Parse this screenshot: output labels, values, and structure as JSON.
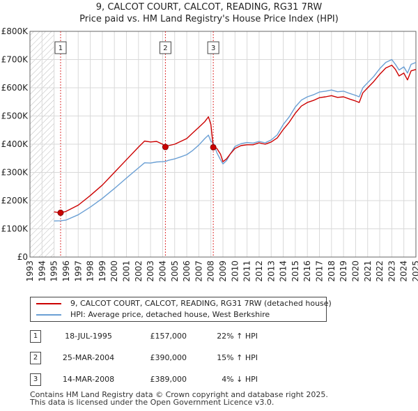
{
  "title_line1": "9, CALCOT COURT, CALCOT, READING, RG31 7RW",
  "title_line2": "Price paid vs. HM Land Registry's House Price Index (HPI)",
  "chart_data": {
    "type": "line",
    "title": "9, CALCOT COURT, CALCOT, READING, RG31 7RW — Price paid vs. HM Land Registry's House Price Index (HPI)",
    "xlabel": "",
    "ylabel": "",
    "xlim": [
      1993,
      2025
    ],
    "ylim": [
      0,
      800000
    ],
    "x_ticks": [
      1993,
      1994,
      1995,
      1996,
      1997,
      1998,
      1999,
      2000,
      2001,
      2002,
      2003,
      2004,
      2005,
      2006,
      2007,
      2008,
      2009,
      2010,
      2011,
      2012,
      2013,
      2014,
      2015,
      2016,
      2017,
      2018,
      2019,
      2020,
      2021,
      2022,
      2023,
      2024,
      2025
    ],
    "y_ticks": [
      0,
      100000,
      200000,
      300000,
      400000,
      500000,
      600000,
      700000,
      800000
    ],
    "y_tick_labels": [
      "£0",
      "£100K",
      "£200K",
      "£300K",
      "£400K",
      "£500K",
      "£600K",
      "£700K",
      "£800K"
    ],
    "grid": true,
    "hatched_region": [
      1993,
      1995
    ],
    "series": [
      {
        "name": "9, CALCOT COURT, CALCOT, READING, RG31 7RW (detached house)",
        "color": "#cc0000",
        "x": [
          1995.0,
          1995.54,
          1996.0,
          1997.0,
          1998.0,
          1999.0,
          2000.0,
          2001.0,
          2002.0,
          2002.5,
          2003.0,
          2003.5,
          2004.0,
          2004.23,
          2004.5,
          2005.0,
          2005.5,
          2006.0,
          2006.5,
          2007.0,
          2007.5,
          2007.8,
          2008.0,
          2008.2,
          2008.5,
          2008.8,
          2009.0,
          2009.3,
          2009.6,
          2010.0,
          2010.5,
          2011.0,
          2011.5,
          2012.0,
          2012.5,
          2013.0,
          2013.5,
          2014.0,
          2014.5,
          2015.0,
          2015.5,
          2016.0,
          2016.5,
          2017.0,
          2017.5,
          2018.0,
          2018.5,
          2019.0,
          2019.5,
          2020.0,
          2020.3,
          2020.6,
          2021.0,
          2021.5,
          2022.0,
          2022.5,
          2023.0,
          2023.3,
          2023.6,
          2024.0,
          2024.3,
          2024.6,
          2025.0
        ],
        "y": [
          160000,
          157000,
          162000,
          184000,
          218000,
          255000,
          300000,
          345000,
          390000,
          411000,
          408000,
          410000,
          400000,
          390000,
          395000,
          400000,
          410000,
          420000,
          440000,
          460000,
          480000,
          497000,
          470000,
          389000,
          385000,
          365000,
          338000,
          348000,
          365000,
          385000,
          395000,
          398000,
          398000,
          405000,
          400000,
          408000,
          422000,
          452000,
          478000,
          510000,
          535000,
          548000,
          555000,
          565000,
          568000,
          572000,
          566000,
          568000,
          560000,
          553000,
          548000,
          582000,
          600000,
          622000,
          648000,
          670000,
          680000,
          665000,
          642000,
          652000,
          628000,
          660000,
          665000
        ]
      },
      {
        "name": "HPI: Average price, detached house, West Berkshire",
        "color": "#6a9fd4",
        "x": [
          1995.0,
          1995.54,
          1996.0,
          1997.0,
          1998.0,
          1999.0,
          2000.0,
          2001.0,
          2002.0,
          2002.5,
          2003.0,
          2003.5,
          2004.0,
          2004.23,
          2004.5,
          2005.0,
          2005.5,
          2006.0,
          2006.5,
          2007.0,
          2007.5,
          2007.8,
          2008.0,
          2008.2,
          2008.5,
          2008.8,
          2009.0,
          2009.3,
          2009.6,
          2010.0,
          2010.5,
          2011.0,
          2011.5,
          2012.0,
          2012.5,
          2013.0,
          2013.5,
          2014.0,
          2014.5,
          2015.0,
          2015.5,
          2016.0,
          2016.5,
          2017.0,
          2017.5,
          2018.0,
          2018.5,
          2019.0,
          2019.5,
          2020.0,
          2020.3,
          2020.6,
          2021.0,
          2021.5,
          2022.0,
          2022.5,
          2023.0,
          2023.3,
          2023.6,
          2024.0,
          2024.3,
          2024.6,
          2025.0
        ],
        "y": [
          128000,
          128700,
          131000,
          150000,
          177000,
          208000,
          243000,
          280000,
          316000,
          334000,
          333000,
          337000,
          338000,
          339000,
          343000,
          348000,
          355000,
          363000,
          378000,
          397000,
          420000,
          432000,
          410000,
          405000,
          370000,
          345000,
          330000,
          342000,
          365000,
          392000,
          402000,
          406000,
          404000,
          410000,
          405000,
          415000,
          433000,
          470000,
          497000,
          532000,
          556000,
          568000,
          575000,
          585000,
          588000,
          592000,
          586000,
          588000,
          580000,
          573000,
          568000,
          600000,
          618000,
          640000,
          668000,
          690000,
          700000,
          683000,
          663000,
          674000,
          652000,
          683000,
          690000
        ]
      }
    ],
    "sales": [
      {
        "label": "1",
        "x": 1995.54,
        "y": 157000
      },
      {
        "label": "2",
        "x": 2004.23,
        "y": 390000
      },
      {
        "label": "3",
        "x": 2008.2,
        "y": 389000
      }
    ]
  },
  "legend": {
    "items": [
      {
        "label": "9, CALCOT COURT, CALCOT, READING, RG31 7RW (detached house)",
        "color": "#cc0000"
      },
      {
        "label": "HPI: Average price, detached house, West Berkshire",
        "color": "#6a9fd4"
      }
    ]
  },
  "sales_table": [
    {
      "num": "1",
      "date": "18-JUL-1995",
      "price": "£157,000",
      "hpi": "22% ↑ HPI"
    },
    {
      "num": "2",
      "date": "25-MAR-2004",
      "price": "£390,000",
      "hpi": "15% ↑ HPI"
    },
    {
      "num": "3",
      "date": "14-MAR-2008",
      "price": "£389,000",
      "hpi": "4% ↓ HPI"
    }
  ],
  "footer_line1": "Contains HM Land Registry data © Crown copyright and database right 2025.",
  "footer_line2": "This data is licensed under the Open Government Licence v3.0."
}
